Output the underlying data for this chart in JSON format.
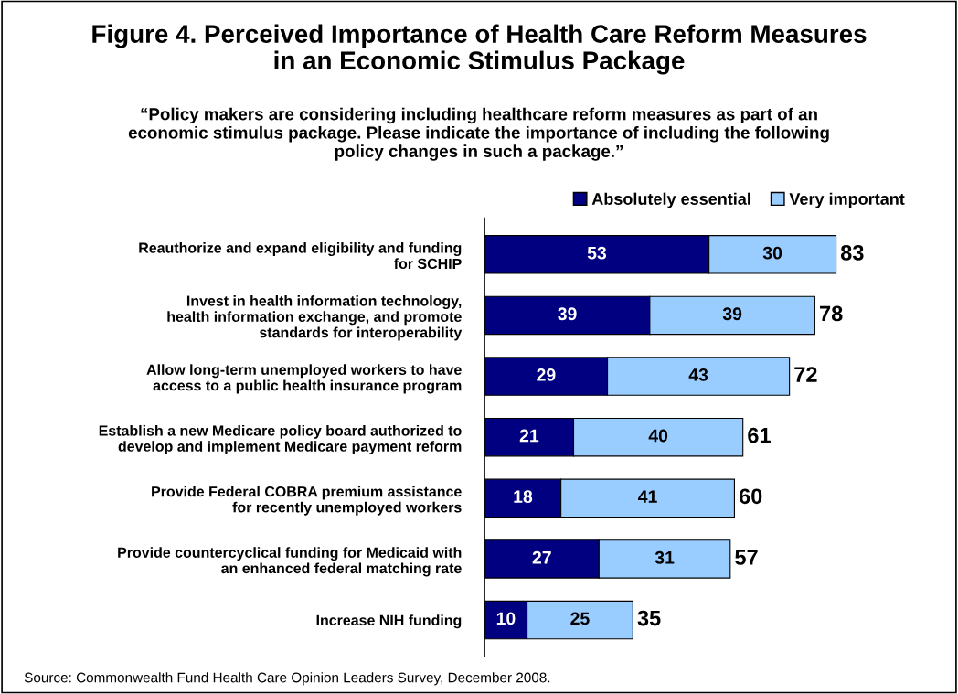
{
  "chart_data": {
    "type": "bar",
    "orientation": "horizontal",
    "stacked": true,
    "title": "Figure 4. Perceived Importance of Health Care Reform Measures\nin an Economic Stimulus Package",
    "subtitle": "“Policy makers are considering including healthcare reform measures as part of an\neconomic stimulus package. Please indicate the importance of including the following\npolicy changes in such a package.”",
    "categories": [
      "Reauthorize and expand eligibility and funding\nfor SCHIP",
      "Invest in health information technology,\nhealth information exchange, and promote\nstandards for interoperability",
      "Allow long-term unemployed workers to have\naccess to a public health insurance program",
      "Establish a new Medicare policy board authorized to\ndevelop and implement Medicare payment reform",
      "Provide Federal COBRA premium assistance\nfor recently unemployed workers",
      "Provide countercyclical funding for Medicaid with\nan enhanced federal matching rate",
      "Increase NIH funding"
    ],
    "series": [
      {
        "name": "Absolutely essential",
        "color": "#000080",
        "values": [
          53,
          39,
          29,
          21,
          18,
          27,
          10
        ]
      },
      {
        "name": "Very important",
        "color": "#99ccff",
        "values": [
          30,
          39,
          43,
          40,
          41,
          31,
          25
        ]
      }
    ],
    "data_labels": true,
    "totals": [
      "83",
      "78",
      "72",
      "61",
      "60",
      "57",
      "35"
    ],
    "legend": "top right",
    "grid": false,
    "annotations": [
      "Source: Commonwealth Fund Health Care Opinion Leaders Survey, December 2008."
    ]
  }
}
